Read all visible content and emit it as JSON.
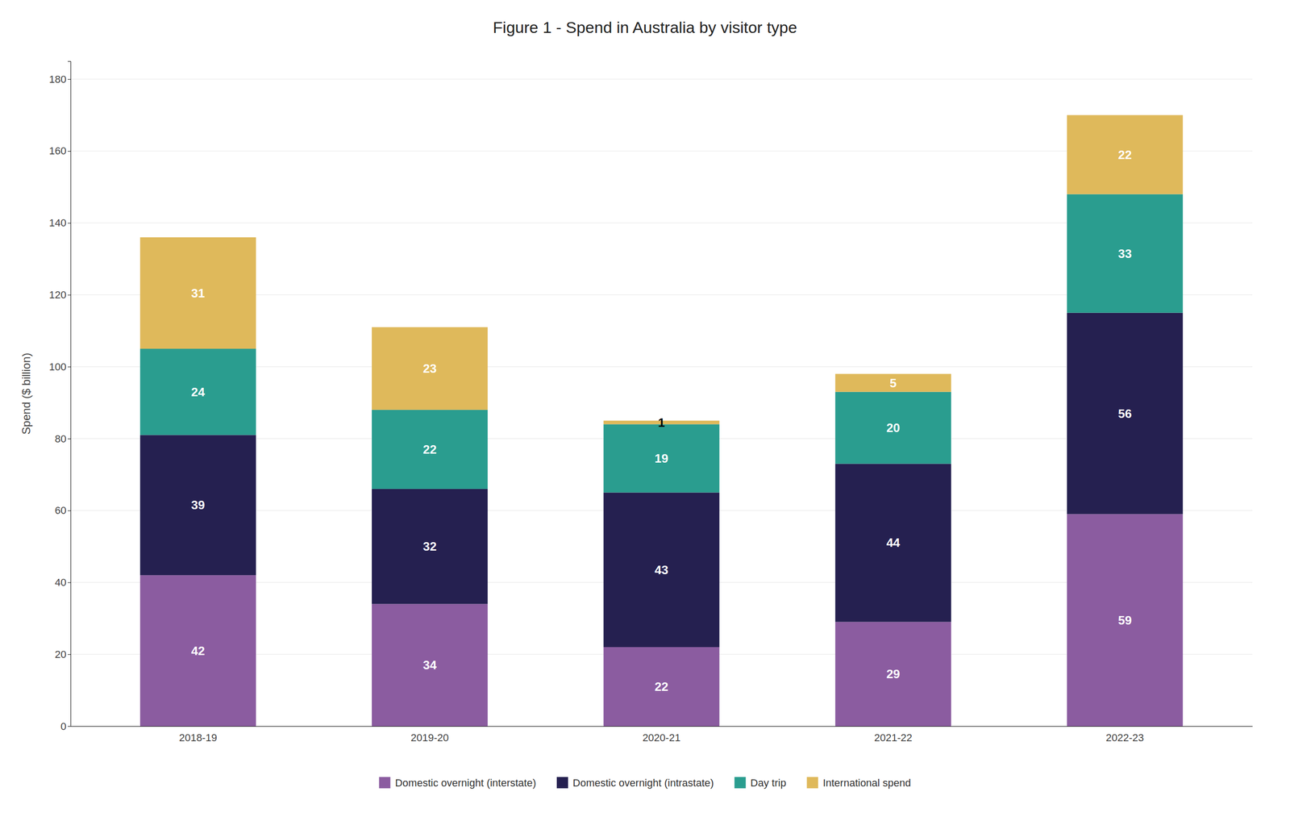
{
  "chart_data": {
    "type": "bar",
    "title": "Figure 1 - Spend in Australia by visitor type",
    "ylabel": "Spend ($ billion)",
    "categories": [
      "2018-19",
      "2019-20",
      "2020-21",
      "2021-22",
      "2022-23"
    ],
    "series": [
      {
        "name": "Domestic overnight (interstate)",
        "color": "#8B5CA0",
        "values": [
          42,
          34,
          22,
          29,
          59
        ]
      },
      {
        "name": "Domestic overnight (intrastate)",
        "color": "#252050",
        "values": [
          39,
          32,
          43,
          44,
          56
        ]
      },
      {
        "name": "Day trip",
        "color": "#2A9D8F",
        "values": [
          24,
          22,
          19,
          20,
          33
        ]
      },
      {
        "name": "International spend",
        "color": "#DFB95B",
        "values": [
          31,
          23,
          1,
          5,
          22
        ]
      }
    ],
    "ylim": [
      0,
      185
    ],
    "yticks": [
      0,
      20,
      40,
      60,
      80,
      100,
      120,
      140,
      160,
      180
    ],
    "grid": true,
    "stacked": true,
    "data_labels": true,
    "legend": "bottom"
  }
}
